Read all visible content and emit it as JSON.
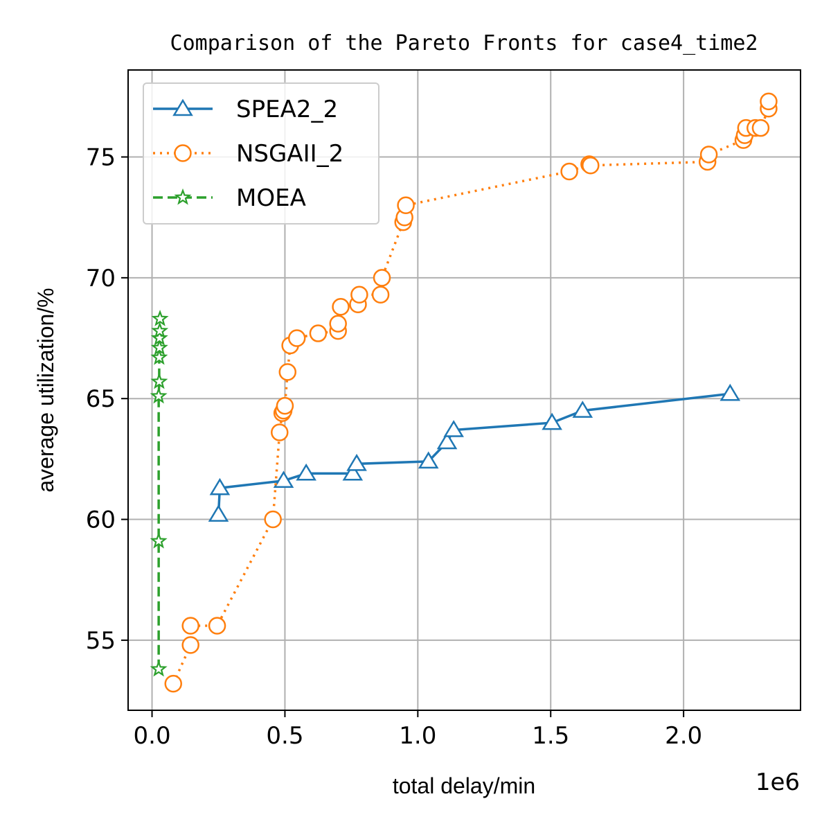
{
  "chart_data": {
    "type": "line",
    "title": "Comparison of the Pareto Fronts for case4_time2",
    "xlabel": "total delay/min",
    "ylabel": "average utilization/%",
    "x_offset_label": "1e6",
    "xlim": [
      -0.09,
      2.44
    ],
    "ylim": [
      52.1,
      78.6
    ],
    "xticks": [
      0.0,
      0.5,
      1.0,
      1.5,
      2.0
    ],
    "xtick_labels": [
      "0.0",
      "0.5",
      "1.0",
      "1.5",
      "2.0"
    ],
    "yticks": [
      55,
      60,
      65,
      70,
      75
    ],
    "ytick_labels": [
      "55",
      "60",
      "65",
      "70",
      "75"
    ],
    "grid": true,
    "legend_position": "upper-left",
    "series": [
      {
        "name": "SPEA2_2",
        "color": "#1f77b4",
        "marker": "triangle",
        "line_style": "solid",
        "points": [
          [
            0.25,
            60.2
          ],
          [
            0.255,
            61.3
          ],
          [
            0.495,
            61.6
          ],
          [
            0.58,
            61.9
          ],
          [
            0.755,
            61.9
          ],
          [
            0.77,
            62.3
          ],
          [
            1.04,
            62.4
          ],
          [
            1.11,
            63.2
          ],
          [
            1.135,
            63.7
          ],
          [
            1.505,
            64.0
          ],
          [
            1.62,
            64.5
          ],
          [
            2.175,
            65.2
          ]
        ]
      },
      {
        "name": "NSGAII_2",
        "color": "#ff7f0e",
        "marker": "circle",
        "line_style": "dotted",
        "points": [
          [
            0.08,
            53.2
          ],
          [
            0.145,
            54.8
          ],
          [
            0.145,
            55.6
          ],
          [
            0.245,
            55.6
          ],
          [
            0.455,
            60.0
          ],
          [
            0.48,
            63.6
          ],
          [
            0.49,
            64.4
          ],
          [
            0.495,
            64.5
          ],
          [
            0.5,
            64.7
          ],
          [
            0.51,
            66.1
          ],
          [
            0.52,
            67.2
          ],
          [
            0.545,
            67.5
          ],
          [
            0.625,
            67.7
          ],
          [
            0.7,
            67.8
          ],
          [
            0.7,
            68.1
          ],
          [
            0.71,
            68.8
          ],
          [
            0.775,
            68.9
          ],
          [
            0.78,
            69.3
          ],
          [
            0.86,
            69.3
          ],
          [
            0.865,
            70.0
          ],
          [
            0.945,
            72.3
          ],
          [
            0.95,
            72.5
          ],
          [
            0.955,
            73.0
          ],
          [
            1.57,
            74.4
          ],
          [
            1.645,
            74.7
          ],
          [
            1.65,
            74.65
          ],
          [
            2.09,
            74.8
          ],
          [
            2.095,
            75.1
          ],
          [
            2.225,
            75.7
          ],
          [
            2.23,
            75.9
          ],
          [
            2.235,
            76.2
          ],
          [
            2.27,
            76.2
          ],
          [
            2.29,
            76.2
          ],
          [
            2.32,
            77.0
          ],
          [
            2.32,
            77.3
          ]
        ]
      },
      {
        "name": "MOEA",
        "color": "#2ca02c",
        "marker": "star",
        "line_style": "dashed",
        "points": [
          [
            0.025,
            53.8
          ],
          [
            0.025,
            59.1
          ],
          [
            0.025,
            65.1
          ],
          [
            0.027,
            65.7
          ],
          [
            0.027,
            66.7
          ],
          [
            0.028,
            67.1
          ],
          [
            0.028,
            67.5
          ],
          [
            0.029,
            67.8
          ],
          [
            0.03,
            68.3
          ]
        ]
      }
    ]
  }
}
